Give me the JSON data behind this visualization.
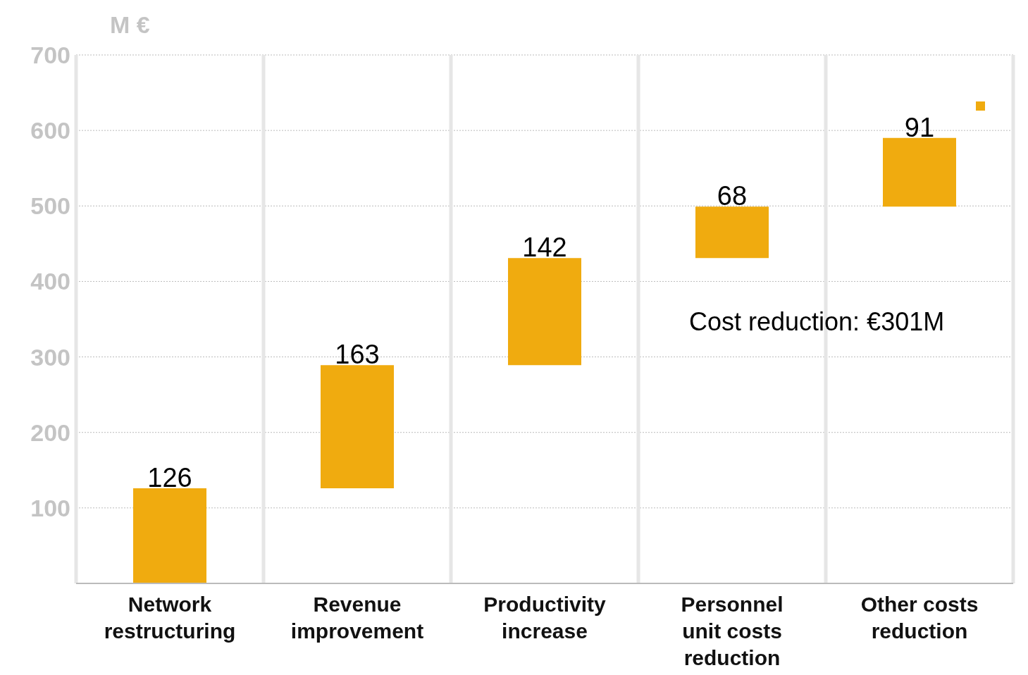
{
  "chart_data": {
    "type": "bar",
    "ylabel": "M €",
    "categories": [
      "Network restructuring",
      "Revenue improvement",
      "Productivity increase",
      "Personnel unit costs reduction",
      "Other costs reduction"
    ],
    "values": [
      126,
      163,
      142,
      68,
      91
    ],
    "base": [
      0,
      126,
      289,
      431,
      499
    ],
    "color": "#f0ab0f",
    "ylim": [
      0,
      700
    ],
    "yticks": [
      100,
      200,
      300,
      400,
      500,
      600,
      700
    ],
    "grid": true,
    "data_labels": true,
    "annotations": [
      "Cost reduction: €301M"
    ]
  }
}
